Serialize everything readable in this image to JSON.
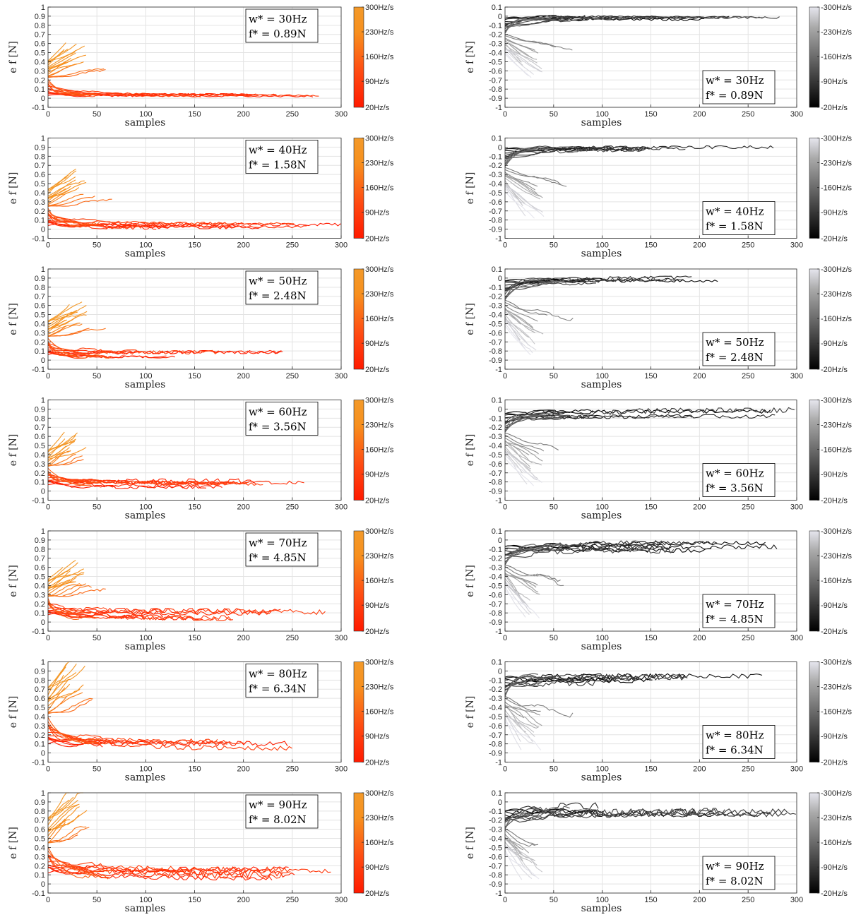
{
  "figure": {
    "xlabel": "samples",
    "ylabel": "e_f [N]",
    "left_column": {
      "ylim": [
        -0.1,
        1
      ],
      "yticks": [
        "-0.1",
        "0",
        "0.1",
        "0.2",
        "0.3",
        "0.4",
        "0.5",
        "0.6",
        "0.7",
        "0.8",
        "0.9",
        "1"
      ],
      "colorbar_labels": [
        "300Hz/s",
        "230Hz/s",
        "160Hz/s",
        "90Hz/s",
        "20Hz/s"
      ],
      "colormap": [
        "#ff1a00",
        "#ff4a12",
        "#f7901e",
        "#f39a2a"
      ]
    },
    "right_column": {
      "ylim": [
        -1,
        0.1
      ],
      "yticks": [
        "-1",
        "-0.9",
        "-0.8",
        "-0.7",
        "-0.6",
        "-0.5",
        "-0.4",
        "-0.3",
        "-0.2",
        "-0.1",
        "0",
        "0.1"
      ],
      "colorbar_labels": [
        "-300Hz/s",
        "-230Hz/s",
        "-160Hz/s",
        "-90Hz/s",
        "-20Hz/s"
      ],
      "colormap": [
        "#000000",
        "#555555",
        "#aaaaaa",
        "#e6e6ee"
      ]
    },
    "xticks": [
      "0",
      "50",
      "100",
      "150",
      "200",
      "250",
      "300"
    ],
    "xlim": [
      0,
      300
    ],
    "grid": true
  },
  "chart_data": [
    {
      "type": "line",
      "row": 1,
      "side": "left",
      "w_label": "w* = 30Hz",
      "f_label": "f* = 0.89N",
      "w": 30,
      "f": 0.89,
      "peak": 0.58,
      "low": 0.03
    },
    {
      "type": "line",
      "row": 1,
      "side": "right",
      "w_label": "w* = 30Hz",
      "f_label": "f* = 0.89N",
      "w": 30,
      "f": 0.89,
      "peak": -0.8,
      "low": -0.02
    },
    {
      "type": "line",
      "row": 2,
      "side": "left",
      "w_label": "w* = 40Hz",
      "f_label": "f* = 1.58N",
      "w": 40,
      "f": 1.58,
      "peak": 0.62,
      "low": 0.04
    },
    {
      "type": "line",
      "row": 2,
      "side": "right",
      "w_label": "w* = 40Hz",
      "f_label": "f* = 1.58N",
      "w": 40,
      "f": 1.58,
      "peak": -0.93,
      "low": -0.02
    },
    {
      "type": "line",
      "row": 3,
      "side": "left",
      "w_label": "w* = 50Hz",
      "f_label": "f* = 2.48N",
      "w": 50,
      "f": 2.48,
      "peak": 0.6,
      "low": 0.06
    },
    {
      "type": "line",
      "row": 3,
      "side": "right",
      "w_label": "w* = 50Hz",
      "f_label": "f* = 2.48N",
      "w": 50,
      "f": 2.48,
      "peak": -1.0,
      "low": -0.03
    },
    {
      "type": "line",
      "row": 4,
      "side": "left",
      "w_label": "w* = 60Hz",
      "f_label": "f* = 3.56N",
      "w": 60,
      "f": 3.56,
      "peak": 0.62,
      "low": 0.07
    },
    {
      "type": "line",
      "row": 4,
      "side": "right",
      "w_label": "w* = 60Hz",
      "f_label": "f* = 3.56N",
      "w": 60,
      "f": 3.56,
      "peak": -1.0,
      "low": -0.05
    },
    {
      "type": "line",
      "row": 5,
      "side": "left",
      "w_label": "w* = 70Hz",
      "f_label": "f* = 4.85N",
      "w": 70,
      "f": 4.85,
      "peak": 0.63,
      "low": 0.08
    },
    {
      "type": "line",
      "row": 5,
      "side": "right",
      "w_label": "w* = 70Hz",
      "f_label": "f* = 4.85N",
      "w": 70,
      "f": 4.85,
      "peak": -1.0,
      "low": -0.07
    },
    {
      "type": "line",
      "row": 6,
      "side": "left",
      "w_label": "w* = 80Hz",
      "f_label": "f* = 6.34N",
      "w": 80,
      "f": 6.34,
      "peak": 1.0,
      "low": 0.1
    },
    {
      "type": "line",
      "row": 6,
      "side": "right",
      "w_label": "w* = 80Hz",
      "f_label": "f* = 6.34N",
      "w": 80,
      "f": 6.34,
      "peak": -1.0,
      "low": -0.08
    },
    {
      "type": "line",
      "row": 7,
      "side": "left",
      "w_label": "w* = 90Hz",
      "f_label": "f* = 8.02N",
      "w": 90,
      "f": 8.02,
      "peak": 1.0,
      "low": 0.12
    },
    {
      "type": "line",
      "row": 7,
      "side": "right",
      "w_label": "w* = 90Hz",
      "f_label": "f* = 8.02N",
      "w": 90,
      "f": 8.02,
      "peak": -1.0,
      "low": -0.1
    }
  ]
}
